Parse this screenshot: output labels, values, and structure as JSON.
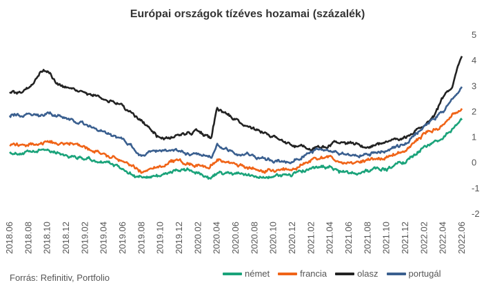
{
  "chart_data": {
    "type": "line",
    "title": "Európai országok tízéves hozamai (százalék)",
    "source": "Forrás: Refinitiv, Portfolio",
    "xlabel": "",
    "ylabel": "",
    "ylim": [
      -2,
      5
    ],
    "yticks": [
      -2,
      -1,
      0,
      1,
      2,
      3,
      4,
      5
    ],
    "x_ticks": [
      "2018.06",
      "2018.08",
      "2018.10",
      "2018.12",
      "2019.02",
      "2019.04",
      "2019.06",
      "2019.08",
      "2019.10",
      "2019.12",
      "2020.02",
      "2020.04",
      "2020.06",
      "2020.08",
      "2020.10",
      "2020.12",
      "2021.02",
      "2021.04",
      "2021.06",
      "2021.08",
      "2021.10",
      "2021.12",
      "2022.02",
      "2022.04",
      "2022.06"
    ],
    "grid": false,
    "legend_position": "bottom",
    "series": [
      {
        "name": "német",
        "color": "#1aa37a",
        "x": [
          0,
          1,
          2,
          3,
          4,
          5,
          6,
          7,
          8,
          9,
          10,
          10.6,
          11,
          12,
          13,
          14,
          15,
          16,
          17,
          18,
          19,
          20,
          21,
          22,
          23,
          24
        ],
        "values": [
          0.4,
          0.35,
          0.5,
          0.3,
          0.15,
          0.0,
          -0.25,
          -0.65,
          -0.5,
          -0.3,
          -0.4,
          -0.7,
          -0.45,
          -0.45,
          -0.55,
          -0.55,
          -0.45,
          -0.25,
          -0.2,
          -0.45,
          -0.3,
          -0.25,
          0.05,
          0.6,
          0.95,
          1.65
        ]
      },
      {
        "name": "francia",
        "color": "#f06418",
        "x": [
          0,
          1,
          2,
          3,
          4,
          5,
          6,
          7,
          8,
          9,
          10,
          10.6,
          11,
          12,
          13,
          14,
          15,
          16,
          17,
          18,
          19,
          20,
          21,
          22,
          23,
          24
        ],
        "values": [
          0.7,
          0.65,
          0.8,
          0.75,
          0.55,
          0.35,
          0.05,
          -0.35,
          -0.15,
          0.05,
          -0.1,
          -0.2,
          0.1,
          -0.1,
          -0.25,
          -0.35,
          -0.25,
          0.1,
          0.15,
          -0.05,
          0.1,
          0.2,
          0.45,
          1.1,
          1.45,
          2.1
        ]
      },
      {
        "name": "olasz",
        "color": "#222222",
        "x": [
          0,
          0.5,
          1,
          1.6,
          2,
          2.4,
          3,
          4,
          5,
          6,
          7,
          8,
          9,
          10,
          10.7,
          11,
          11.4,
          12,
          13,
          14,
          15,
          16,
          17,
          18,
          19,
          20,
          21,
          22,
          22.5,
          23,
          23.5,
          24
        ],
        "values": [
          2.75,
          2.7,
          2.9,
          3.5,
          3.6,
          3.2,
          2.9,
          2.7,
          2.5,
          2.2,
          1.6,
          0.9,
          1.1,
          1.2,
          0.95,
          2.1,
          1.9,
          1.6,
          1.3,
          1.0,
          0.7,
          0.55,
          0.7,
          0.75,
          0.6,
          0.8,
          0.95,
          1.5,
          1.8,
          2.5,
          3.0,
          4.15
        ]
      },
      {
        "name": "portugál",
        "color": "#3a5f8f",
        "x": [
          0,
          1,
          2,
          3,
          4,
          5,
          6,
          7,
          8,
          9,
          10,
          10.7,
          11,
          12,
          13,
          14,
          15,
          16,
          17,
          18,
          19,
          20,
          21,
          22,
          23,
          24
        ],
        "values": [
          1.85,
          1.8,
          1.9,
          1.7,
          1.45,
          1.2,
          0.85,
          0.25,
          0.45,
          0.45,
          0.3,
          0.2,
          0.7,
          0.4,
          0.2,
          0.05,
          0.0,
          0.45,
          0.5,
          0.25,
          0.3,
          0.5,
          0.75,
          1.4,
          2.0,
          2.95
        ]
      }
    ]
  }
}
